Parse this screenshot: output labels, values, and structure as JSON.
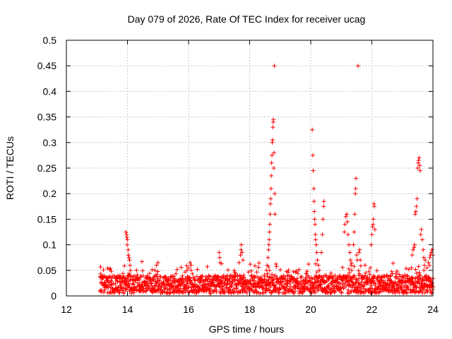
{
  "chart_data": {
    "type": "scatter",
    "title": "Day 079 of 2026, Rate Of TEC Index for receiver ucag",
    "xlabel": "GPS time / hours",
    "ylabel": "ROTI / TECUs",
    "xlim": [
      12,
      24
    ],
    "ylim": [
      0,
      0.5
    ],
    "grid": true,
    "marker": "+",
    "color": "#ff0000",
    "x_ticks": [
      "12",
      "14",
      "16",
      "18",
      "20",
      "22",
      "24"
    ],
    "x_tick_values": [
      12,
      14,
      16,
      18,
      20,
      22,
      24
    ],
    "y_ticks": [
      "0",
      "0.05",
      "0.1",
      "0.15",
      "0.2",
      "0.25",
      "0.3",
      "0.35",
      "0.4",
      "0.45",
      "0.5"
    ],
    "y_tick_values": [
      0,
      0.05,
      0.1,
      0.15,
      0.2,
      0.25,
      0.3,
      0.35,
      0.4,
      0.45,
      0.5
    ],
    "baseline": {
      "x_start": 13.1,
      "x_end": 24.0,
      "y_min": 0.005,
      "y_max": 0.04,
      "step_hours": 0.02
    },
    "series": [
      {
        "name": "ROTI",
        "points": [
          [
            13.95,
            0.125
          ],
          [
            13.97,
            0.12
          ],
          [
            13.98,
            0.115
          ],
          [
            14.0,
            0.11
          ],
          [
            13.99,
            0.1
          ],
          [
            14.02,
            0.09
          ],
          [
            14.03,
            0.08
          ],
          [
            14.05,
            0.075
          ],
          [
            14.07,
            0.07
          ],
          [
            14.08,
            0.06
          ],
          [
            14.1,
            0.05
          ],
          [
            14.9,
            0.05
          ],
          [
            14.95,
            0.06
          ],
          [
            15.0,
            0.065
          ],
          [
            15.95,
            0.05
          ],
          [
            16.0,
            0.055
          ],
          [
            16.05,
            0.065
          ],
          [
            16.08,
            0.06
          ],
          [
            17.0,
            0.085
          ],
          [
            17.02,
            0.075
          ],
          [
            17.03,
            0.065
          ],
          [
            17.65,
            0.065
          ],
          [
            17.7,
            0.08
          ],
          [
            17.72,
            0.09
          ],
          [
            17.73,
            0.1
          ],
          [
            17.75,
            0.085
          ],
          [
            17.78,
            0.07
          ],
          [
            18.55,
            0.05
          ],
          [
            18.57,
            0.06
          ],
          [
            18.6,
            0.075
          ],
          [
            18.62,
            0.09
          ],
          [
            18.63,
            0.1
          ],
          [
            18.64,
            0.11
          ],
          [
            18.65,
            0.125
          ],
          [
            18.66,
            0.14
          ],
          [
            18.67,
            0.16
          ],
          [
            18.68,
            0.18
          ],
          [
            18.69,
            0.19
          ],
          [
            18.7,
            0.21
          ],
          [
            18.71,
            0.235
          ],
          [
            18.72,
            0.26
          ],
          [
            18.73,
            0.275
          ],
          [
            18.74,
            0.3
          ],
          [
            18.75,
            0.305
          ],
          [
            18.76,
            0.33
          ],
          [
            18.77,
            0.34
          ],
          [
            18.78,
            0.345
          ],
          [
            18.79,
            0.25
          ],
          [
            18.8,
            0.28
          ],
          [
            18.81,
            0.45
          ],
          [
            18.82,
            0.2
          ],
          [
            18.83,
            0.16
          ],
          [
            20.05,
            0.325
          ],
          [
            20.07,
            0.275
          ],
          [
            20.08,
            0.245
          ],
          [
            20.1,
            0.21
          ],
          [
            20.11,
            0.185
          ],
          [
            20.12,
            0.165
          ],
          [
            20.13,
            0.15
          ],
          [
            20.14,
            0.14
          ],
          [
            20.15,
            0.12
          ],
          [
            20.16,
            0.11
          ],
          [
            20.18,
            0.1
          ],
          [
            20.2,
            0.085
          ],
          [
            20.22,
            0.07
          ],
          [
            20.25,
            0.06
          ],
          [
            20.28,
            0.05
          ],
          [
            20.35,
            0.085
          ],
          [
            20.38,
            0.12
          ],
          [
            20.4,
            0.15
          ],
          [
            20.42,
            0.175
          ],
          [
            20.43,
            0.185
          ],
          [
            21.1,
            0.125
          ],
          [
            21.12,
            0.14
          ],
          [
            21.15,
            0.155
          ],
          [
            21.18,
            0.16
          ],
          [
            21.2,
            0.145
          ],
          [
            21.22,
            0.12
          ],
          [
            21.25,
            0.1
          ],
          [
            21.28,
            0.085
          ],
          [
            21.3,
            0.07
          ],
          [
            21.32,
            0.06
          ],
          [
            21.34,
            0.05
          ],
          [
            21.4,
            0.1
          ],
          [
            21.42,
            0.125
          ],
          [
            21.44,
            0.16
          ],
          [
            21.46,
            0.2
          ],
          [
            21.47,
            0.21
          ],
          [
            21.48,
            0.23
          ],
          [
            21.5,
            0.08
          ],
          [
            21.52,
            0.07
          ],
          [
            21.55,
            0.45
          ],
          [
            21.58,
            0.085
          ],
          [
            21.6,
            0.09
          ],
          [
            21.62,
            0.07
          ],
          [
            21.95,
            0.055
          ],
          [
            21.98,
            0.1
          ],
          [
            22.0,
            0.12
          ],
          [
            22.02,
            0.135
          ],
          [
            22.04,
            0.14
          ],
          [
            22.05,
            0.15
          ],
          [
            22.07,
            0.18
          ],
          [
            22.08,
            0.175
          ],
          [
            22.1,
            0.13
          ],
          [
            23.3,
            0.055
          ],
          [
            23.32,
            0.08
          ],
          [
            23.35,
            0.09
          ],
          [
            23.38,
            0.095
          ],
          [
            23.4,
            0.1
          ],
          [
            23.42,
            0.16
          ],
          [
            23.44,
            0.165
          ],
          [
            23.46,
            0.175
          ],
          [
            23.48,
            0.19
          ],
          [
            23.5,
            0.25
          ],
          [
            23.52,
            0.26
          ],
          [
            23.53,
            0.265
          ],
          [
            23.55,
            0.27
          ],
          [
            23.57,
            0.255
          ],
          [
            23.58,
            0.245
          ],
          [
            23.6,
            0.12
          ],
          [
            23.62,
            0.13
          ],
          [
            23.65,
            0.11
          ],
          [
            23.68,
            0.09
          ],
          [
            23.7,
            0.075
          ],
          [
            23.72,
            0.06
          ],
          [
            23.75,
            0.07
          ],
          [
            23.8,
            0.055
          ],
          [
            23.85,
            0.065
          ],
          [
            23.9,
            0.075
          ],
          [
            23.92,
            0.08
          ],
          [
            23.95,
            0.085
          ],
          [
            23.97,
            0.09
          ],
          [
            24.0,
            0.08
          ]
        ]
      }
    ]
  }
}
